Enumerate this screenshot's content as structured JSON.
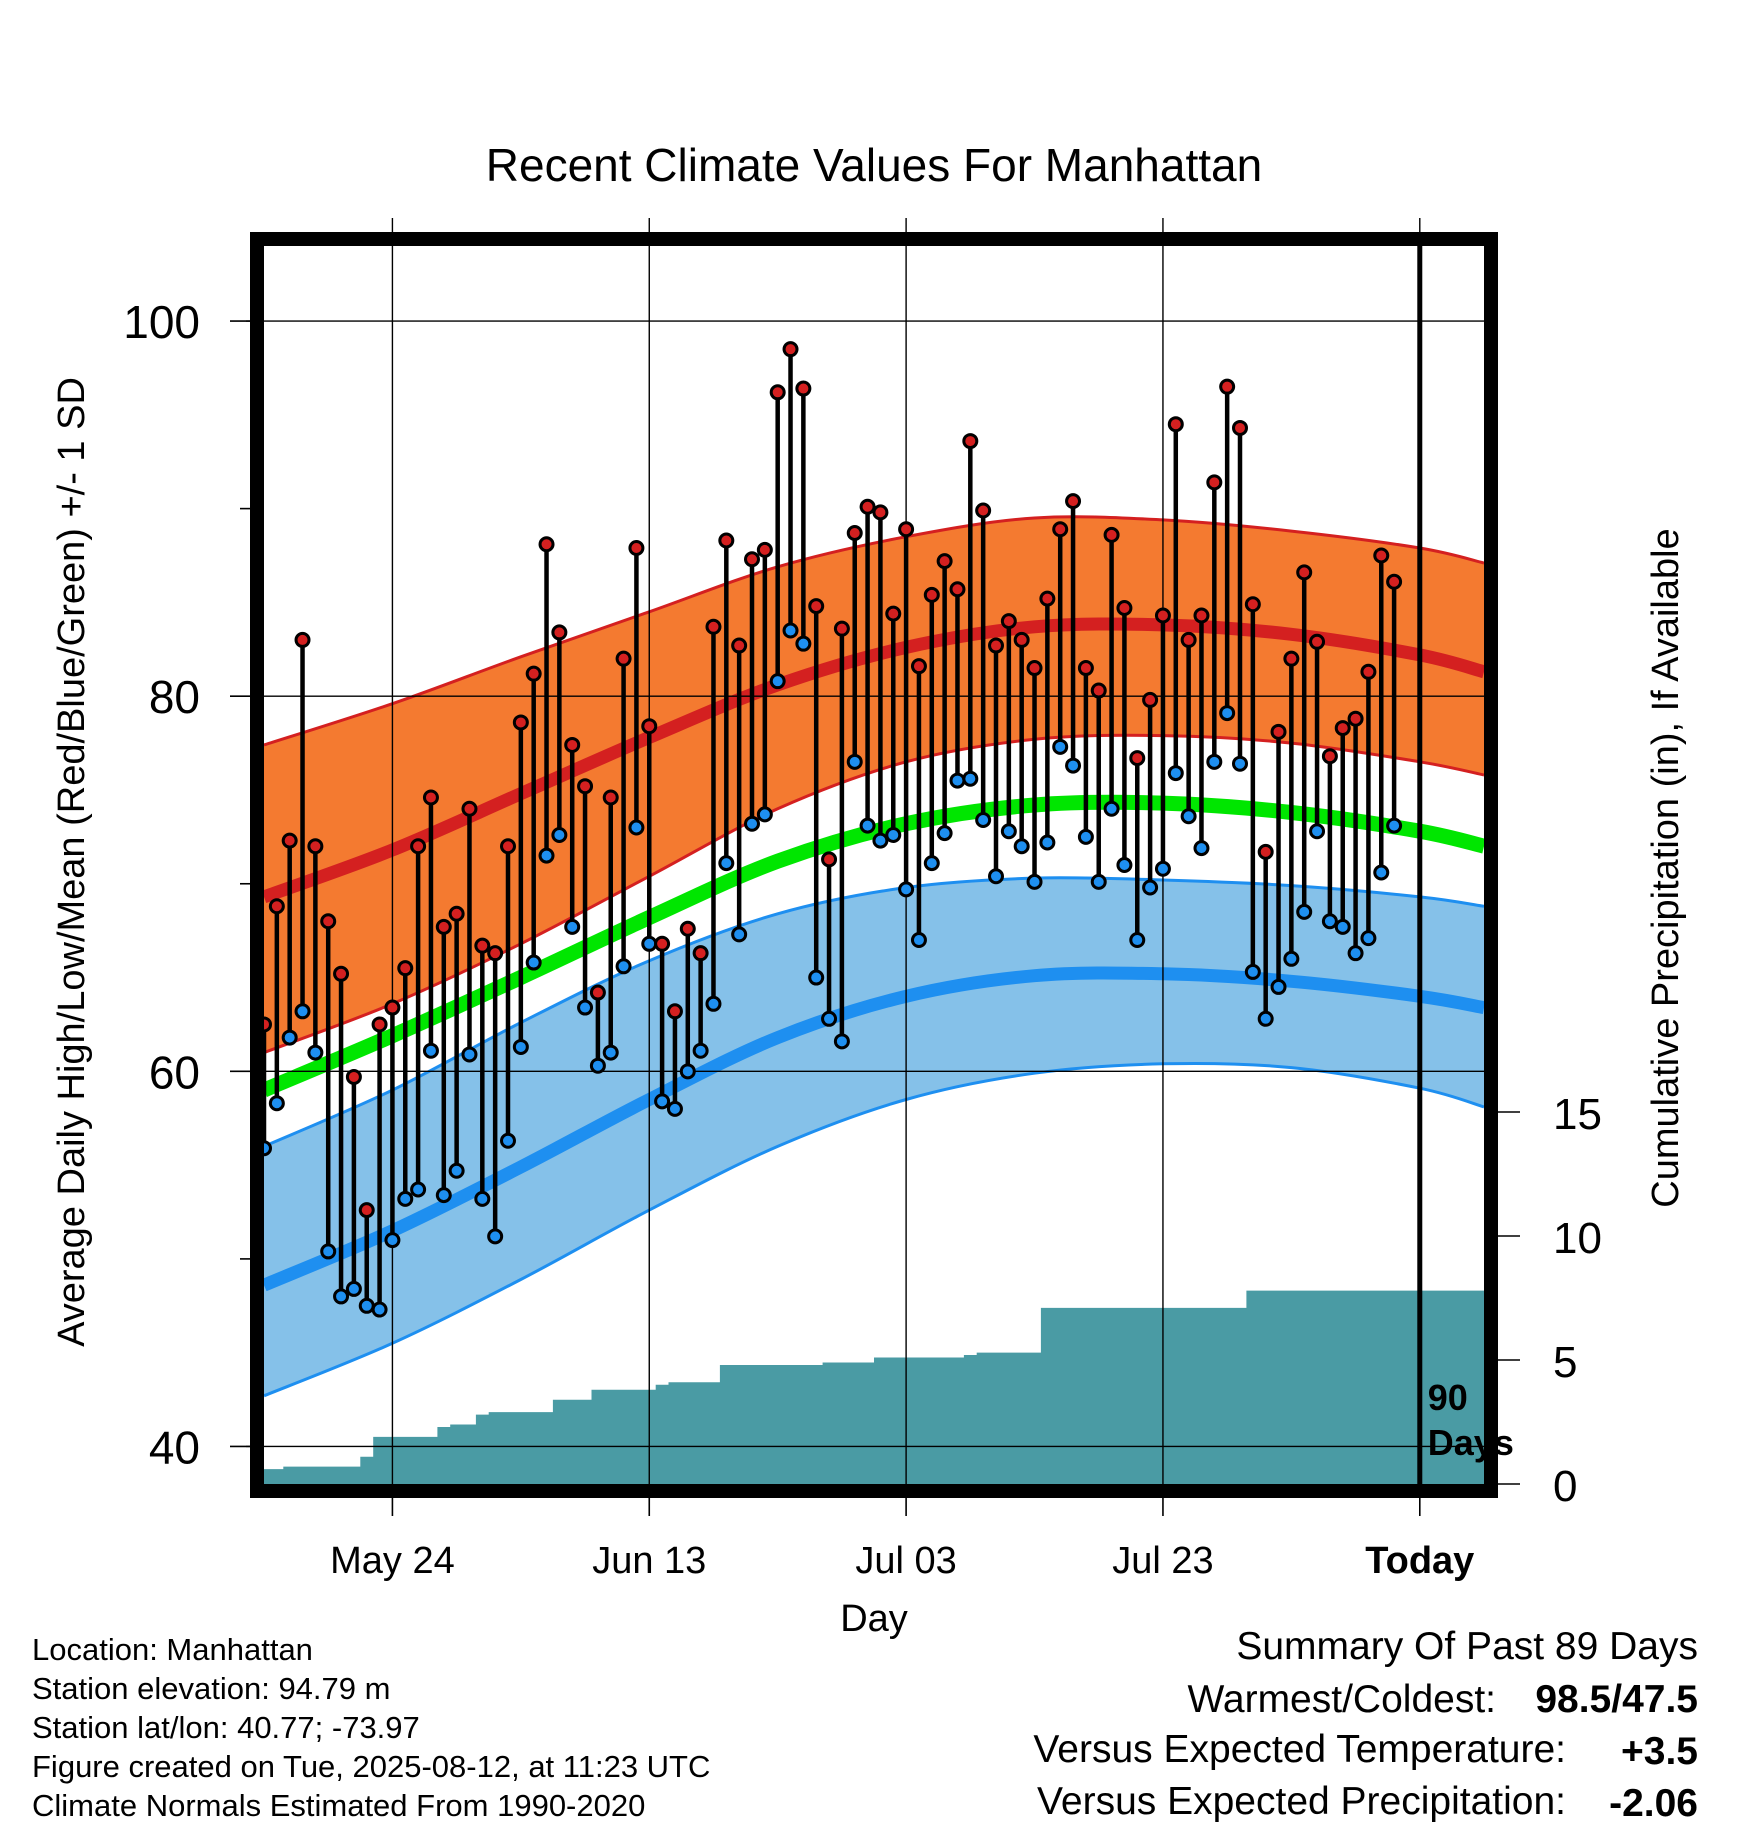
{
  "chart_data": {
    "type": "line",
    "title": "Recent Climate Values For Manhattan",
    "xlabel": "Day",
    "ylabel_left": "Average Daily High/Low/Mean (Red/Blue/Green) +/- 1 SD",
    "ylabel_right": "Cumulative Precipitation (in), If Available",
    "xlim": [
      "2025-05-14",
      "2025-08-17"
    ],
    "ylim_left": [
      38,
      104
    ],
    "left_ticks": [
      40,
      60,
      80,
      100
    ],
    "left_minor_ticks": [
      50,
      70,
      90
    ],
    "right_ticks": [
      0,
      5,
      10,
      15
    ],
    "x_ticks": [
      {
        "date": "2025-05-24",
        "label": "May 24"
      },
      {
        "date": "2025-06-13",
        "label": "Jun 13"
      },
      {
        "date": "2025-07-03",
        "label": "Jul 03"
      },
      {
        "date": "2025-07-23",
        "label": "Jul 23"
      },
      {
        "date": "2025-08-12",
        "label": "Today"
      }
    ],
    "today": "2025-08-12",
    "today_annotation": [
      "90",
      "Days"
    ],
    "grid": true,
    "colors": {
      "high_band": "#f47a30",
      "high_mean": "#d42020",
      "high_band_edge": "#d42020",
      "low_band": "#85c1e9",
      "low_mean": "#1e8ff0",
      "low_band_edge": "#1e8ff0",
      "mean": "#00e600",
      "precip": "#4a9ba4",
      "high_dot": "#d42020",
      "low_dot": "#1e8ff0"
    },
    "normals": {
      "dates": [
        "2025-05-14",
        "2025-05-24",
        "2025-06-03",
        "2025-06-13",
        "2025-06-23",
        "2025-07-03",
        "2025-07-13",
        "2025-07-23",
        "2025-08-02",
        "2025-08-12",
        "2025-08-17"
      ],
      "high_mean": [
        69.3,
        71.8,
        74.8,
        77.8,
        80.6,
        82.6,
        83.7,
        83.8,
        83.3,
        82.2,
        81.3
      ],
      "high_upper": [
        77.4,
        79.6,
        82.1,
        84.5,
        86.9,
        88.5,
        89.5,
        89.4,
        88.8,
        87.9,
        87.1
      ],
      "high_lower": [
        61.0,
        63.6,
        66.8,
        70.4,
        74.0,
        76.5,
        77.7,
        77.9,
        77.5,
        76.5,
        75.8
      ],
      "mean": [
        59.0,
        61.9,
        65.0,
        68.2,
        71.2,
        73.2,
        74.2,
        74.3,
        73.8,
        72.8,
        72.0
      ],
      "low_mean": [
        48.6,
        51.5,
        54.9,
        58.5,
        61.8,
        64.0,
        65.1,
        65.2,
        64.8,
        64.0,
        63.4
      ],
      "low_upper": [
        56.0,
        59.0,
        62.6,
        65.9,
        68.4,
        69.8,
        70.3,
        70.2,
        69.9,
        69.3,
        68.8
      ],
      "low_lower": [
        42.7,
        45.5,
        48.9,
        52.6,
        56.0,
        58.5,
        59.9,
        60.4,
        60.2,
        59.1,
        58.1
      ]
    },
    "daily": {
      "start_date": "2025-05-14",
      "high": [
        62.5,
        68.8,
        72.3,
        83.0,
        72.0,
        68.0,
        65.2,
        59.7,
        52.6,
        62.5,
        63.4,
        65.5,
        72.0,
        74.6,
        67.7,
        68.4,
        74.0,
        66.7,
        66.3,
        72.0,
        78.6,
        81.2,
        88.1,
        83.4,
        77.4,
        75.2,
        64.2,
        74.6,
        82.0,
        87.9,
        78.4,
        66.8,
        63.2,
        67.6,
        66.3,
        83.7,
        88.3,
        82.7,
        87.3,
        87.8,
        96.2,
        98.5,
        96.4,
        84.8,
        71.3,
        83.6,
        88.7,
        90.1,
        89.8,
        84.4,
        88.9,
        81.6,
        85.4,
        87.2,
        85.7,
        93.6,
        89.9,
        82.7,
        84.0,
        83.0,
        81.5,
        85.2,
        88.9,
        90.4,
        81.5,
        80.3,
        88.6,
        84.7,
        76.7,
        79.8,
        84.3,
        94.5,
        83.0,
        84.3,
        91.4,
        96.5,
        94.3,
        84.9,
        71.7,
        78.1,
        82.0,
        86.6,
        82.9,
        76.8,
        78.3,
        78.8,
        81.3,
        87.5,
        86.1
      ],
      "low": [
        55.9,
        58.3,
        61.8,
        63.2,
        61.0,
        50.4,
        48.0,
        48.4,
        47.5,
        47.3,
        51.0,
        53.2,
        53.7,
        61.1,
        53.4,
        54.7,
        60.9,
        53.2,
        51.2,
        56.3,
        61.3,
        65.8,
        71.5,
        72.6,
        67.7,
        63.4,
        60.3,
        61.0,
        65.6,
        73.0,
        66.8,
        58.4,
        58.0,
        60.0,
        61.1,
        63.6,
        71.1,
        67.3,
        73.2,
        73.7,
        80.8,
        83.5,
        82.8,
        65.0,
        62.8,
        61.6,
        76.5,
        73.1,
        72.3,
        72.6,
        69.7,
        67.0,
        71.1,
        72.7,
        75.5,
        75.6,
        73.4,
        70.4,
        72.8,
        72.0,
        70.1,
        72.2,
        77.3,
        76.3,
        72.5,
        70.1,
        74.0,
        71.0,
        67.0,
        69.8,
        70.8,
        75.9,
        73.6,
        71.9,
        76.5,
        79.1,
        76.4,
        65.3,
        62.8,
        64.5,
        66.0,
        68.5,
        72.8,
        68.0,
        67.7,
        66.3,
        67.1,
        70.6,
        73.1
      ]
    },
    "precip_cumulative": {
      "start_date": "2025-05-14",
      "values": [
        0.6,
        0.6,
        0.7,
        0.7,
        0.7,
        0.7,
        0.7,
        0.7,
        1.1,
        1.9,
        1.9,
        1.9,
        1.9,
        1.9,
        2.3,
        2.4,
        2.4,
        2.8,
        2.9,
        2.9,
        2.9,
        2.9,
        2.9,
        3.4,
        3.4,
        3.4,
        3.8,
        3.8,
        3.8,
        3.8,
        3.8,
        4.0,
        4.1,
        4.1,
        4.1,
        4.1,
        4.8,
        4.8,
        4.8,
        4.8,
        4.8,
        4.8,
        4.8,
        4.8,
        4.9,
        4.9,
        4.9,
        4.9,
        5.1,
        5.1,
        5.1,
        5.1,
        5.1,
        5.1,
        5.1,
        5.2,
        5.3,
        5.3,
        5.3,
        5.3,
        5.3,
        7.1,
        7.1,
        7.1,
        7.1,
        7.1,
        7.1,
        7.1,
        7.1,
        7.1,
        7.1,
        7.1,
        7.1,
        7.1,
        7.1,
        7.1,
        7.1,
        7.8,
        7.8,
        7.8,
        7.8,
        7.8,
        7.8,
        7.8,
        7.8,
        7.8,
        7.8,
        7.8,
        7.8,
        7.8,
        7.8,
        7.8,
        7.8,
        7.8,
        7.8,
        7.8
      ]
    }
  },
  "info": {
    "lines": [
      "Location: Manhattan",
      "Station elevation: 94.79 m",
      "Station lat/lon: 40.77; -73.97",
      "Figure created on Tue, 2025-08-12, at 11:23 UTC",
      "Climate Normals Estimated From 1990-2020"
    ]
  },
  "summary": {
    "title": "Summary Of Past 89 Days",
    "warm_cold_label": "Warmest/Coldest:",
    "warmest": "98.5",
    "separator": "/",
    "coldest": "47.5",
    "temp_label": "Versus Expected Temperature:",
    "temp_value": "+3.5",
    "temp_color": "#d42020",
    "precip_label": "Versus Expected Precipitation:",
    "precip_value": "-2.06",
    "precip_color": "#a0522d"
  }
}
